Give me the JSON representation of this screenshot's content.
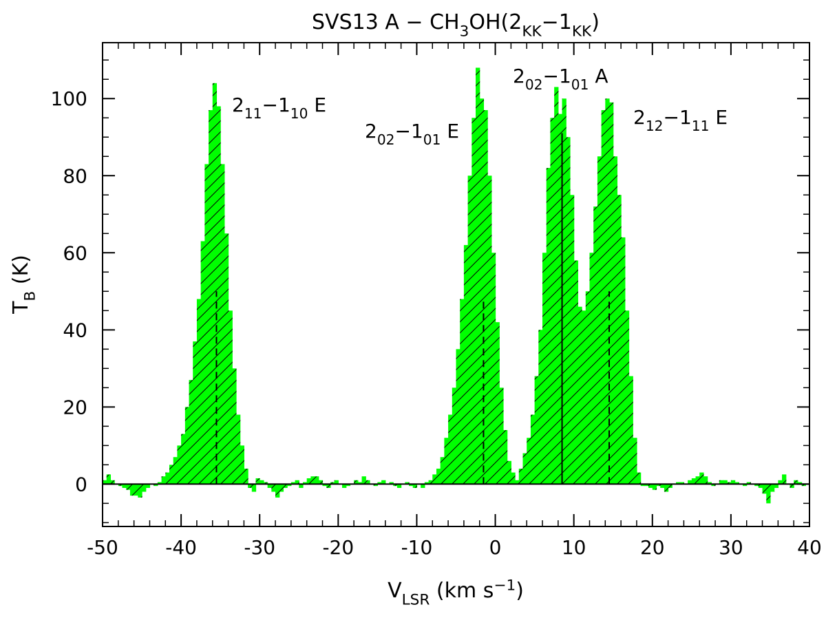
{
  "chart_data": {
    "type": "histogram",
    "title_parts": [
      {
        "text": "SVS13 A − CH"
      },
      {
        "text": "3",
        "shift": "sub"
      },
      {
        "text": "OH(2"
      },
      {
        "text": "KK",
        "shift": "sub"
      },
      {
        "text": "−1"
      },
      {
        "text": "KK",
        "shift": "sub"
      },
      {
        "text": ")"
      }
    ],
    "xlabel_parts": [
      {
        "text": "V"
      },
      {
        "text": "LSR",
        "shift": "sub"
      },
      {
        "text": " (km s"
      },
      {
        "text": "−1",
        "shift": "sup"
      },
      {
        "text": ")"
      }
    ],
    "ylabel_parts": [
      {
        "text": "T"
      },
      {
        "text": "B",
        "shift": "sub"
      },
      {
        "text": " (K)"
      }
    ],
    "color": "#00ff00",
    "hatch": true,
    "x": [
      -49.75,
      -49.25,
      -48.75,
      -48.25,
      -47.75,
      -47.25,
      -46.75,
      -46.25,
      -45.75,
      -45.25,
      -44.75,
      -44.25,
      -43.75,
      -43.25,
      -42.75,
      -42.25,
      -41.75,
      -41.25,
      -40.75,
      -40.25,
      -39.75,
      -39.25,
      -38.75,
      -38.25,
      -37.75,
      -37.25,
      -36.75,
      -36.25,
      -35.75,
      -35.25,
      -34.75,
      -34.25,
      -33.75,
      -33.25,
      -32.75,
      -32.25,
      -31.75,
      -31.25,
      -30.75,
      -30.25,
      -29.75,
      -29.25,
      -28.75,
      -28.25,
      -27.75,
      -27.25,
      -26.75,
      -26.25,
      -25.75,
      -25.25,
      -24.75,
      -24.25,
      -23.75,
      -23.25,
      -22.75,
      -22.25,
      -21.75,
      -21.25,
      -20.75,
      -20.25,
      -19.75,
      -19.25,
      -18.75,
      -18.25,
      -17.75,
      -17.25,
      -16.75,
      -16.25,
      -15.75,
      -15.25,
      -14.75,
      -14.25,
      -13.75,
      -13.25,
      -12.75,
      -12.25,
      -11.75,
      -11.25,
      -10.75,
      -10.25,
      -9.75,
      -9.25,
      -8.75,
      -8.25,
      -7.75,
      -7.25,
      -6.75,
      -6.25,
      -5.75,
      -5.25,
      -4.75,
      -4.25,
      -3.75,
      -3.25,
      -2.75,
      -2.25,
      -1.75,
      -1.25,
      -0.75,
      -0.25,
      0.25,
      0.75,
      1.25,
      1.75,
      2.25,
      2.75,
      3.25,
      3.75,
      4.25,
      4.75,
      5.25,
      5.75,
      6.25,
      6.75,
      7.25,
      7.75,
      8.25,
      8.75,
      9.25,
      9.75,
      10.25,
      10.75,
      11.25,
      11.75,
      12.25,
      12.75,
      13.25,
      13.75,
      14.25,
      14.75,
      15.25,
      15.75,
      16.25,
      16.75,
      17.25,
      17.75,
      18.25,
      18.75,
      19.25,
      19.75,
      20.25,
      20.75,
      21.25,
      21.75,
      22.25,
      22.75,
      23.25,
      23.75,
      24.25,
      24.75,
      25.25,
      25.75,
      26.25,
      26.75,
      27.25,
      27.75,
      28.25,
      28.75,
      29.25,
      29.75,
      30.25,
      30.75,
      31.25,
      31.75,
      32.25,
      32.75,
      33.25,
      33.75,
      34.25,
      34.75,
      35.25,
      35.75,
      36.25,
      36.75,
      37.25,
      37.75,
      38.25,
      38.75,
      39.25,
      39.75
    ],
    "values": [
      1,
      2.5,
      1,
      0,
      -0.5,
      -1,
      -1.5,
      -3,
      -3,
      -3.5,
      -2,
      -1,
      0,
      -0.5,
      0.5,
      2,
      3,
      5,
      7,
      10,
      13,
      20,
      27,
      37,
      48,
      63,
      83,
      97,
      104,
      98,
      83,
      65,
      45,
      30,
      18,
      10,
      4,
      -1,
      -2,
      1.5,
      1,
      0.5,
      -1,
      -2,
      -3.5,
      -2,
      -1,
      -0.5,
      0.5,
      1,
      -1,
      0.5,
      1.5,
      2,
      2,
      1,
      -0.5,
      -1,
      0.5,
      1,
      0,
      -1,
      -0.5,
      0,
      1,
      0.5,
      2,
      1,
      0,
      -0.5,
      0.5,
      1,
      0,
      0.5,
      -0.5,
      -1,
      0,
      0.5,
      -0.5,
      -1,
      0,
      -1,
      0.5,
      1,
      2.5,
      4,
      7,
      12,
      18,
      25,
      35,
      48,
      62,
      80,
      95,
      108,
      100,
      97,
      80,
      60,
      42,
      25,
      14,
      6,
      3,
      1,
      4,
      8,
      12,
      18,
      28,
      40,
      60,
      82,
      95,
      103,
      96,
      100,
      90,
      75,
      58,
      46,
      45,
      50,
      60,
      72,
      85,
      97,
      100,
      99,
      85,
      75,
      64,
      45,
      28,
      12,
      3,
      -0.5,
      -0.5,
      -1,
      -1.5,
      -0.5,
      -1,
      -2,
      -1,
      0,
      0.5,
      0.5,
      0,
      1,
      1.5,
      2,
      3,
      2,
      0.5,
      -0.5,
      0,
      1,
      1,
      0.5,
      1,
      0.5,
      0,
      -0.5,
      0.5,
      0,
      -0.5,
      -1,
      -2.5,
      -5,
      -2,
      -1,
      1,
      2.5,
      0,
      -1,
      1,
      0.5,
      -0.5,
      0
    ],
    "xlim": [
      -50,
      40
    ],
    "ylim": [
      -11,
      114.5
    ],
    "xticks": [
      -50,
      -40,
      -30,
      -20,
      -10,
      0,
      10,
      20,
      30,
      40
    ],
    "yticks": [
      0,
      20,
      40,
      60,
      80,
      100
    ],
    "xminorticks": [
      -48,
      -46,
      -44,
      -42,
      -38,
      -36,
      -34,
      -32,
      -28,
      -26,
      -24,
      -22,
      -18,
      -16,
      -14,
      -12,
      -8,
      -6,
      -4,
      -2,
      2,
      4,
      6,
      8,
      12,
      14,
      16,
      18,
      22,
      24,
      26,
      28,
      32,
      34,
      36,
      38
    ],
    "yminorticks": [
      -10,
      -5,
      5,
      10,
      15,
      25,
      30,
      35,
      45,
      50,
      55,
      65,
      70,
      75,
      85,
      90,
      95,
      105,
      110
    ],
    "zero_line": 0,
    "markers": [
      {
        "x": -35.5,
        "top": 50,
        "style": "dashed"
      },
      {
        "x": -1.5,
        "top": 48,
        "style": "dashed"
      },
      {
        "x": 8.5,
        "top": 91,
        "style": "solid"
      },
      {
        "x": 14.5,
        "top": 50,
        "style": "dashed"
      }
    ],
    "annotations": [
      [
        {
          "text": "2"
        },
        {
          "text": "11",
          "shift": "sub"
        },
        {
          "text": "−1"
        },
        {
          "text": "10",
          "shift": "sub"
        },
        {
          "text": " E"
        }
      ],
      [
        {
          "text": "2"
        },
        {
          "text": "02",
          "shift": "sub"
        },
        {
          "text": "−1"
        },
        {
          "text": "01",
          "shift": "sub"
        },
        {
          "text": " E"
        }
      ],
      [
        {
          "text": "2"
        },
        {
          "text": "02",
          "shift": "sub"
        },
        {
          "text": "−1"
        },
        {
          "text": "01",
          "shift": "sub"
        },
        {
          "text": " A"
        }
      ],
      [
        {
          "text": "2"
        },
        {
          "text": "12",
          "shift": "sub"
        },
        {
          "text": "−1"
        },
        {
          "text": "11",
          "shift": "sub"
        },
        {
          "text": " E"
        }
      ]
    ]
  }
}
